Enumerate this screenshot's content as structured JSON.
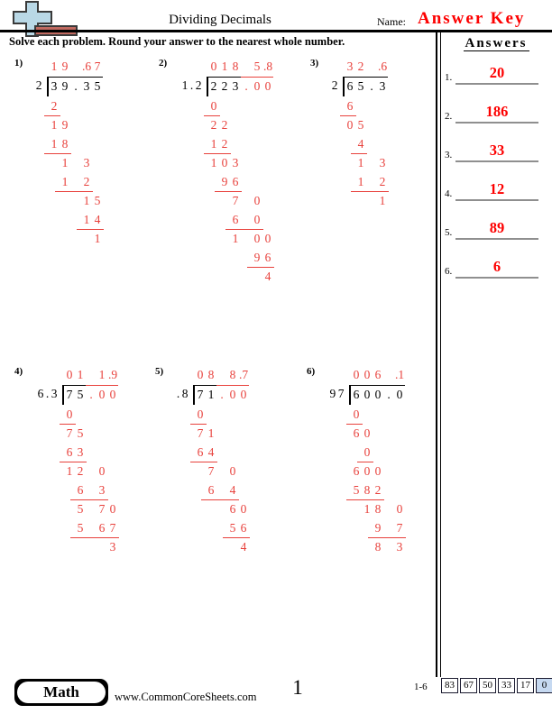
{
  "colors": {
    "work_red": "#e8413c",
    "answer_red": "#fd0000",
    "answer_line_gray": "#8f8f8f",
    "score_highlight": "#c6d9f1",
    "logo_blue": "#b9d8e6",
    "logo_brown": "#c06a60",
    "logo_outline": "#3a3a3a"
  },
  "header": {
    "title": "Dividing Decimals",
    "name_label": "Name:",
    "answer_key_label": "Answer Key",
    "instruction": "Solve each problem. Round your answer to the nearest whole number."
  },
  "answers_panel": {
    "heading": "Answers",
    "items": [
      {
        "num": "1.",
        "value": "20"
      },
      {
        "num": "2.",
        "value": "186"
      },
      {
        "num": "3.",
        "value": "33"
      },
      {
        "num": "4.",
        "value": "12"
      },
      {
        "num": "5.",
        "value": "89"
      },
      {
        "num": "6.",
        "value": "6"
      }
    ]
  },
  "problems": [
    {
      "label": "1)",
      "divisor": "2",
      "dividend_black": [
        "3",
        "9",
        ".",
        "3",
        "5"
      ],
      "dividend_red": [],
      "quotient": [
        "1",
        "9",
        "",
        ".6",
        "7"
      ],
      "work": [
        {
          "s": 0,
          "c": [
            "2"
          ],
          "u": 1
        },
        {
          "s": 0,
          "c": [
            "1",
            "9"
          ],
          "u": 0
        },
        {
          "s": 0,
          "c": [
            "1",
            "8"
          ],
          "u": 1
        },
        {
          "s": 1,
          "c": [
            "1",
            "",
            "3"
          ],
          "u": 0
        },
        {
          "s": 1,
          "c": [
            "1",
            "",
            "2"
          ],
          "u": 1
        },
        {
          "s": 3,
          "c": [
            "1",
            "5"
          ],
          "u": 0
        },
        {
          "s": 3,
          "c": [
            "1",
            "4"
          ],
          "u": 1
        },
        {
          "s": 4,
          "c": [
            "1"
          ],
          "u": 0
        }
      ]
    },
    {
      "label": "2)",
      "divisor": "1.2",
      "dividend_black": [
        "2",
        "2",
        "3"
      ],
      "dividend_red": [
        ".",
        "0",
        "0"
      ],
      "quotient": [
        "0",
        "1",
        "8",
        "",
        "5",
        ".8"
      ],
      "work": [
        {
          "s": 0,
          "c": [
            "0"
          ],
          "u": 1
        },
        {
          "s": 0,
          "c": [
            "2",
            "2"
          ],
          "u": 0
        },
        {
          "s": 0,
          "c": [
            "1",
            "2"
          ],
          "u": 1
        },
        {
          "s": 0,
          "c": [
            "1",
            "0",
            "3"
          ],
          "u": 0
        },
        {
          "s": 1,
          "c": [
            "9",
            "6"
          ],
          "u": 1
        },
        {
          "s": 2,
          "c": [
            "7",
            "",
            "0"
          ],
          "u": 0
        },
        {
          "s": 2,
          "c": [
            "6",
            "",
            "0"
          ],
          "u": 1
        },
        {
          "s": 2,
          "c": [
            "1",
            "",
            "0",
            "0"
          ],
          "u": 0
        },
        {
          "s": 4,
          "c": [
            "9",
            "6"
          ],
          "u": 1
        },
        {
          "s": 5,
          "c": [
            "4"
          ],
          "u": 0
        }
      ]
    },
    {
      "label": "3)",
      "divisor": "2",
      "dividend_black": [
        "6",
        "5",
        ".",
        "3"
      ],
      "dividend_red": [],
      "quotient": [
        "3",
        "2",
        "",
        ".6"
      ],
      "work": [
        {
          "s": 0,
          "c": [
            "6"
          ],
          "u": 1
        },
        {
          "s": 0,
          "c": [
            "0",
            "5"
          ],
          "u": 0
        },
        {
          "s": 1,
          "c": [
            "4"
          ],
          "u": 1
        },
        {
          "s": 1,
          "c": [
            "1",
            "",
            "3"
          ],
          "u": 0
        },
        {
          "s": 1,
          "c": [
            "1",
            "",
            "2"
          ],
          "u": 1
        },
        {
          "s": 3,
          "c": [
            "1"
          ],
          "u": 0
        }
      ]
    },
    {
      "label": "4)",
      "divisor": "6.3",
      "dividend_black": [
        "7",
        "5"
      ],
      "dividend_red": [
        ".",
        "0",
        "0"
      ],
      "quotient": [
        "0",
        "1",
        "",
        "1",
        ".9"
      ],
      "work": [
        {
          "s": 0,
          "c": [
            "0"
          ],
          "u": 1
        },
        {
          "s": 0,
          "c": [
            "7",
            "5"
          ],
          "u": 0
        },
        {
          "s": 0,
          "c": [
            "6",
            "3"
          ],
          "u": 1
        },
        {
          "s": 0,
          "c": [
            "1",
            "2",
            "",
            "0"
          ],
          "u": 0
        },
        {
          "s": 1,
          "c": [
            "6",
            "",
            "3"
          ],
          "u": 1
        },
        {
          "s": 1,
          "c": [
            "5",
            "",
            "7",
            "0"
          ],
          "u": 0
        },
        {
          "s": 1,
          "c": [
            "5",
            "",
            "6",
            "7"
          ],
          "u": 1
        },
        {
          "s": 4,
          "c": [
            "3"
          ],
          "u": 0
        }
      ]
    },
    {
      "label": "5)",
      "divisor": ".8",
      "dividend_black": [
        "7",
        "1"
      ],
      "dividend_red": [
        ".",
        "0",
        "0"
      ],
      "quotient": [
        "0",
        "8",
        "",
        "8",
        ".7"
      ],
      "work": [
        {
          "s": 0,
          "c": [
            "0"
          ],
          "u": 1
        },
        {
          "s": 0,
          "c": [
            "7",
            "1"
          ],
          "u": 0
        },
        {
          "s": 0,
          "c": [
            "6",
            "4"
          ],
          "u": 1
        },
        {
          "s": 1,
          "c": [
            "7",
            "",
            "0"
          ],
          "u": 0
        },
        {
          "s": 1,
          "c": [
            "6",
            "",
            "4"
          ],
          "u": 1
        },
        {
          "s": 3,
          "c": [
            "6",
            "0"
          ],
          "u": 0
        },
        {
          "s": 3,
          "c": [
            "5",
            "6"
          ],
          "u": 1
        },
        {
          "s": 4,
          "c": [
            "4"
          ],
          "u": 0
        }
      ]
    },
    {
      "label": "6)",
      "divisor": "97",
      "dividend_black": [
        "6",
        "0",
        "0",
        ".",
        "0"
      ],
      "dividend_red": [],
      "quotient": [
        "0",
        "0",
        "6",
        "",
        ".1"
      ],
      "work": [
        {
          "s": 0,
          "c": [
            "0"
          ],
          "u": 1
        },
        {
          "s": 0,
          "c": [
            "6",
            "0"
          ],
          "u": 0
        },
        {
          "s": 1,
          "c": [
            "0"
          ],
          "u": 1
        },
        {
          "s": 0,
          "c": [
            "6",
            "0",
            "0"
          ],
          "u": 0
        },
        {
          "s": 0,
          "c": [
            "5",
            "8",
            "2"
          ],
          "u": 1
        },
        {
          "s": 1,
          "c": [
            "1",
            "8",
            "",
            "0"
          ],
          "u": 0
        },
        {
          "s": 2,
          "c": [
            "9",
            "",
            "7"
          ],
          "u": 1
        },
        {
          "s": 2,
          "c": [
            "8",
            "",
            "3"
          ],
          "u": 0
        }
      ]
    }
  ],
  "footer": {
    "subject_badge": "Math",
    "website": "www.CommonCoreSheets.com",
    "page_number": "1",
    "score_range_label": "1-6",
    "score_boxes": [
      "83",
      "67",
      "50",
      "33",
      "17",
      "0"
    ],
    "score_highlight_index": 5
  }
}
